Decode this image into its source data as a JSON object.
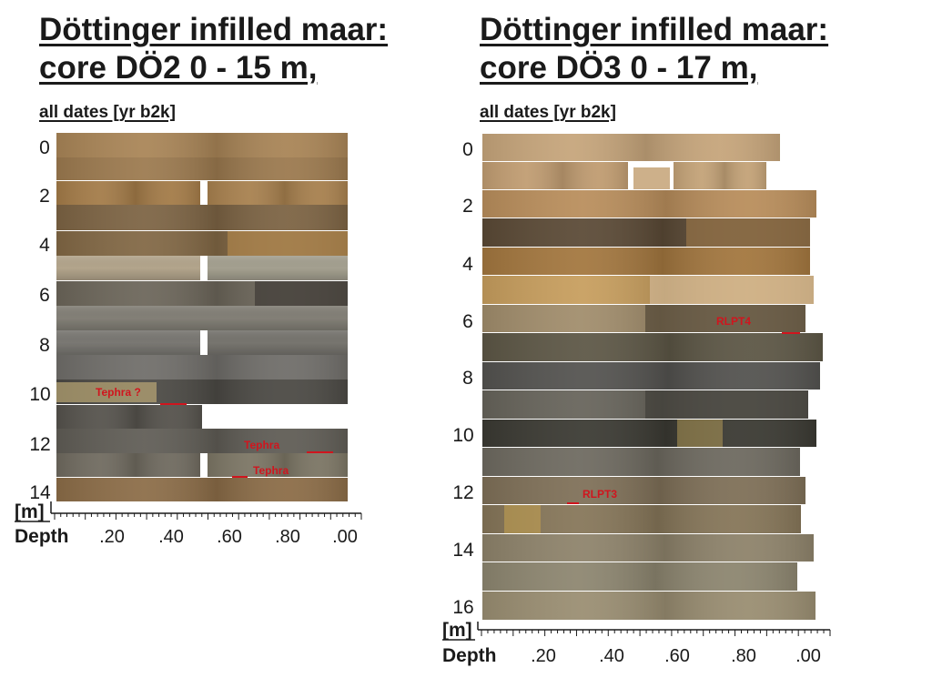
{
  "cores": [
    {
      "id": "DO2",
      "title_line1": "Döttinger infilled maar:",
      "title_line2": "core DÖ2   0 - 15 m,",
      "subtitle": "all dates [yr b2k]",
      "depth_labels": [
        "0",
        "2",
        "4",
        "6",
        "8",
        "10",
        "12",
        "14"
      ],
      "unit_label": "[m]",
      "axis_title": "Depth",
      "axis_tick_labels": [
        ".20",
        ".40",
        ".60",
        ".80",
        ".00"
      ],
      "annotations": [
        {
          "label": "Tephra ?",
          "depth_m": 10.3
        },
        {
          "label": "Tephra",
          "depth_m": 12.1
        },
        {
          "label": "Tephra",
          "depth_m": 13.1
        }
      ]
    },
    {
      "id": "DO3",
      "title_line1": "Döttinger infilled maar:",
      "title_line2": "core DÖ3   0 - 17 m,",
      "subtitle": "all dates [yr b2k]",
      "depth_labels": [
        "0",
        "2",
        "4",
        "6",
        "8",
        "10",
        "12",
        "14",
        "16"
      ],
      "unit_label": "[m]",
      "axis_title": "Depth",
      "axis_tick_labels": [
        ".20",
        ".40",
        ".60",
        ".80",
        ".00"
      ],
      "annotations": [
        {
          "label": "RLPT4",
          "depth_m": 6.2
        },
        {
          "label": "RLPT3",
          "depth_m": 12.0
        }
      ]
    }
  ],
  "colors": {
    "text": "#1a1a1a",
    "annotation": "#d0151e",
    "background": "#ffffff"
  }
}
